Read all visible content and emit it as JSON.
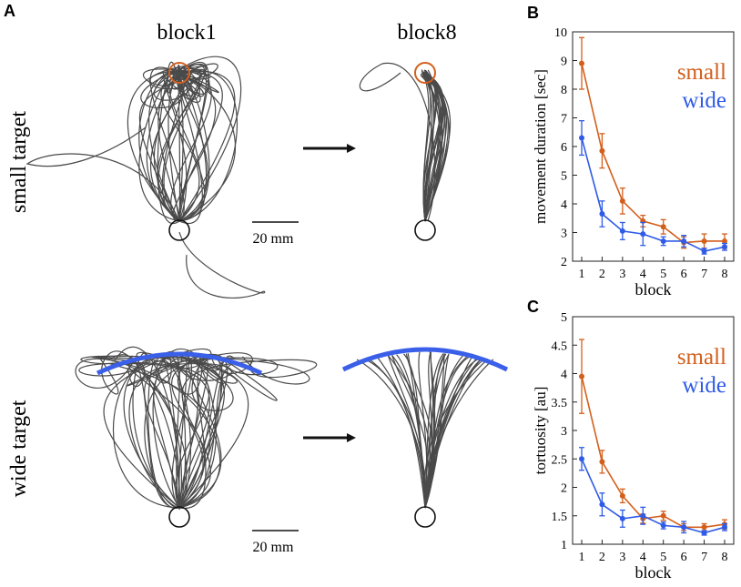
{
  "panels": {
    "A": "A",
    "B": "B",
    "C": "C"
  },
  "panel_a": {
    "col_block1": "block1",
    "col_block8": "block8",
    "row_small": "small target",
    "row_wide": "wide target",
    "scale_bar": "20 mm"
  },
  "colors": {
    "small": "#d35f1c",
    "wide": "#2f5be6",
    "trace": "#4a4a4a",
    "arc": "#3a5fe8"
  },
  "chart_data": [
    {
      "type": "line",
      "panel": "B",
      "categories": [
        "1",
        "2",
        "3",
        "4",
        "5",
        "6",
        "7",
        "8"
      ],
      "xlabel": "block",
      "ylabel": "movement duration [sec]",
      "ylim": [
        2,
        10
      ],
      "yticks": [
        "2",
        "3",
        "4",
        "5",
        "6",
        "7",
        "8",
        "9",
        "10"
      ],
      "series": [
        {
          "name": "small",
          "values": [
            8.9,
            5.85,
            4.1,
            3.4,
            3.2,
            2.65,
            2.7,
            2.7
          ],
          "errors": [
            0.9,
            0.6,
            0.45,
            0.2,
            0.25,
            0.2,
            0.25,
            0.25
          ]
        },
        {
          "name": "wide",
          "values": [
            6.3,
            3.65,
            3.05,
            2.95,
            2.7,
            2.7,
            2.35,
            2.5
          ],
          "errors": [
            0.6,
            0.45,
            0.3,
            0.4,
            0.15,
            0.2,
            0.1,
            0.12
          ]
        }
      ]
    },
    {
      "type": "line",
      "panel": "C",
      "categories": [
        "1",
        "2",
        "3",
        "4",
        "5",
        "6",
        "7",
        "8"
      ],
      "xlabel": "block",
      "ylabel": "tortuosity [au]",
      "ylim": [
        1,
        5
      ],
      "yticks": [
        "1",
        "1.5",
        "2",
        "2.5",
        "3",
        "3.5",
        "4",
        "4.5",
        "5"
      ],
      "series": [
        {
          "name": "small",
          "values": [
            3.95,
            2.45,
            1.85,
            1.45,
            1.5,
            1.3,
            1.3,
            1.35
          ],
          "errors": [
            0.65,
            0.2,
            0.12,
            0.08,
            0.08,
            0.06,
            0.06,
            0.08
          ]
        },
        {
          "name": "wide",
          "values": [
            2.5,
            1.7,
            1.45,
            1.5,
            1.33,
            1.3,
            1.2,
            1.3
          ],
          "errors": [
            0.2,
            0.2,
            0.15,
            0.15,
            0.06,
            0.1,
            0.04,
            0.06
          ]
        }
      ]
    }
  ]
}
